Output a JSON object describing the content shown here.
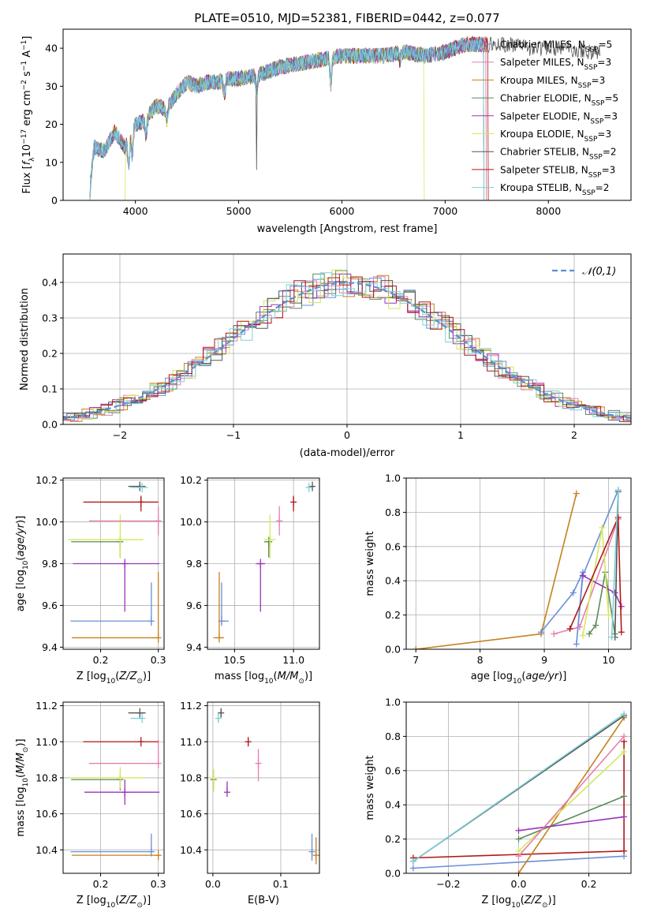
{
  "chart_data": [
    {
      "panel": "spectrum",
      "type": "line",
      "title": "PLATE=0510, MJD=52381, FIBERID=0442, z=0.077",
      "xlabel": "wavelength [Angstrom, rest frame]",
      "ylabel": "Flux [f_λ10^-17 erg cm^-2 s^-1 A^-1]",
      "xlim": [
        3300,
        8800
      ],
      "ylim": [
        0,
        45
      ],
      "xticks": [
        "4000",
        "5000",
        "6000",
        "7000",
        "8000"
      ],
      "yticks": [
        "0",
        "10",
        "20",
        "30",
        "40"
      ],
      "grid": false,
      "legend_position": "top-right",
      "legend": [
        {
          "name": "Chabrier MILES, N_SSP=5",
          "color": "#6a8fd8"
        },
        {
          "name": "Salpeter MILES, N_SSP=3",
          "color": "#e67fb0"
        },
        {
          "name": "Kroupa MILES, N_SSP=3",
          "color": "#c6801e"
        },
        {
          "name": "Chabrier ELODIE, N_SSP=5",
          "color": "#5c8a5c"
        },
        {
          "name": "Salpeter ELODIE, N_SSP=3",
          "color": "#9a35b8"
        },
        {
          "name": "Kroupa ELODIE, N_SSP=3",
          "color": "#d4e85a"
        },
        {
          "name": "Chabrier STELIB, N_SSP=2",
          "color": "#555555"
        },
        {
          "name": "Salpeter STELIB, N_SSP=3",
          "color": "#b01818"
        },
        {
          "name": "Kroupa STELIB, N_SSP=2",
          "color": "#7fd0d8"
        }
      ],
      "spectrum_knots": {
        "x": [
          3550,
          3600,
          3700,
          3800,
          3900,
          4000,
          4100,
          4200,
          4300,
          4400,
          4500,
          4600,
          4700,
          4800,
          4900,
          5000,
          5200,
          5400,
          5600,
          5800,
          6000,
          6200,
          6400,
          6600,
          6800,
          7000,
          7200,
          7400,
          7600,
          7800,
          8000,
          8200,
          8400,
          8500
        ],
        "y": [
          0,
          14,
          13,
          18,
          14,
          20,
          21,
          25,
          24,
          28,
          31,
          30,
          31,
          31,
          32,
          32,
          33,
          35,
          36,
          37,
          38,
          38,
          38,
          39,
          38,
          39,
          41,
          41,
          41,
          40,
          40,
          40,
          39,
          39
        ]
      }
    },
    {
      "panel": "residuals",
      "type": "line",
      "xlabel": "(data-model)/error",
      "ylabel": "Normed distribution",
      "xlim": [
        -2.5,
        2.5
      ],
      "ylim": [
        0,
        0.48
      ],
      "xticks": [
        "−2",
        "−1",
        "0",
        "1",
        "2"
      ],
      "yticks": [
        "0.0",
        "0.1",
        "0.2",
        "0.3",
        "0.4"
      ],
      "grid": true,
      "legend_position": "top-right",
      "reference_curve": {
        "name": "𝒩(0,1)",
        "mean": 0,
        "sigma": 1,
        "color": "#5b8fd6"
      },
      "hist_bin_width": 0.1
    },
    {
      "panel": "age_vs_Z",
      "type": "scatter",
      "xlabel": "Z [log10(Z/Z☉)]",
      "ylabel": "age  [log10(age/yr)]",
      "xlim": [
        0.135,
        0.31
      ],
      "ylim": [
        9.39,
        10.21
      ],
      "xticks": [
        "0.2",
        "0.3"
      ],
      "yticks": [
        "9.4",
        "9.6",
        "9.8",
        "10.0",
        "10.2"
      ],
      "grid": true,
      "points": [
        {
          "name": "Chabrier MILES",
          "x": 0.288,
          "y": 9.525,
          "xerr": [
            0.14,
            0.0
          ],
          "yerr": [
            0.015,
            0.185
          ]
        },
        {
          "name": "Kroupa MILES",
          "x": 0.3,
          "y": 9.445,
          "xerr": [
            0.15,
            0.0
          ],
          "yerr": [
            0.0,
            0.315
          ]
        },
        {
          "name": "Salpeter ELODIE",
          "x": 0.242,
          "y": 9.8,
          "xerr": [
            0.09,
            0.06
          ],
          "yerr": [
            0.23,
            0.0
          ]
        },
        {
          "name": "Chabrier ELODIE",
          "x": 0.234,
          "y": 9.905,
          "xerr": [
            0.085,
            0.0
          ],
          "yerr": [
            0.075,
            0.0
          ]
        },
        {
          "name": "Kroupa ELODIE",
          "x": 0.234,
          "y": 9.915,
          "xerr": [
            0.09,
            0.04
          ],
          "yerr": [
            0.09,
            0.12
          ]
        },
        {
          "name": "Salpeter MILES",
          "x": 0.3,
          "y": 10.005,
          "xerr": [
            0.12,
            0.0
          ],
          "yerr": [
            0.07,
            0.07
          ]
        },
        {
          "name": "Salpeter STELIB",
          "x": 0.27,
          "y": 10.095,
          "xerr": [
            0.1,
            0.03
          ],
          "yerr": [
            0.045,
            0.03
          ]
        },
        {
          "name": "Chabrier STELIB",
          "x": 0.268,
          "y": 10.17,
          "xerr": [
            0.02,
            0.01
          ],
          "yerr": [
            0.0,
            0.0
          ]
        },
        {
          "name": "Kroupa STELIB",
          "x": 0.272,
          "y": 10.165,
          "xerr": [
            0.02,
            0.01
          ],
          "yerr": [
            0.0,
            0.0
          ]
        }
      ]
    },
    {
      "panel": "age_vs_mass",
      "type": "scatter",
      "xlabel": "mass [log10(M/M☉)]",
      "ylabel": "",
      "xlim": [
        10.27,
        11.22
      ],
      "ylim": [
        9.39,
        10.21
      ],
      "xticks": [
        "10.5",
        "11.0"
      ],
      "yticks": [
        "9.4",
        "9.6",
        "9.8",
        "10.0",
        "10.2"
      ],
      "grid": true,
      "points": [
        {
          "name": "Chabrier MILES",
          "x": 10.39,
          "y": 9.525,
          "xerr": [
            0.0,
            0.06
          ],
          "yerr": [
            0.015,
            0.185
          ]
        },
        {
          "name": "Kroupa MILES",
          "x": 10.37,
          "y": 9.445,
          "xerr": [
            0.05,
            0.04
          ],
          "yerr": [
            0.0,
            0.315
          ]
        },
        {
          "name": "Salpeter ELODIE",
          "x": 10.72,
          "y": 9.8,
          "xerr": [
            0.04,
            0.04
          ],
          "yerr": [
            0.23,
            0.0
          ]
        },
        {
          "name": "Chabrier ELODIE",
          "x": 10.79,
          "y": 9.905,
          "xerr": [
            0.04,
            0.03
          ],
          "yerr": [
            0.075,
            0.0
          ]
        },
        {
          "name": "Kroupa ELODIE",
          "x": 10.8,
          "y": 9.915,
          "xerr": [
            0.05,
            0.05
          ],
          "yerr": [
            0.09,
            0.12
          ]
        },
        {
          "name": "Salpeter MILES",
          "x": 10.88,
          "y": 10.005,
          "xerr": [
            0.0,
            0.0
          ],
          "yerr": [
            0.07,
            0.07
          ]
        },
        {
          "name": "Salpeter STELIB",
          "x": 11.0,
          "y": 10.095,
          "xerr": [
            0.0,
            0.0
          ],
          "yerr": [
            0.045,
            0.03
          ]
        },
        {
          "name": "Chabrier STELIB",
          "x": 11.16,
          "y": 10.17,
          "xerr": [
            0.01,
            0.01
          ],
          "yerr": [
            0.0,
            0.0
          ]
        },
        {
          "name": "Kroupa STELIB",
          "x": 11.13,
          "y": 10.165,
          "xerr": [
            0.02,
            0.0
          ],
          "yerr": [
            0.0,
            0.0
          ]
        }
      ]
    },
    {
      "panel": "massweight_vs_age",
      "type": "line",
      "xlabel": "age  [log10(age/yr)]",
      "ylabel": "mass weight",
      "xlim": [
        6.85,
        10.35
      ],
      "ylim": [
        0,
        1
      ],
      "xticks": [
        "7",
        "8",
        "9",
        "10"
      ],
      "yticks": [
        "0.0",
        "0.2",
        "0.4",
        "0.6",
        "0.8",
        "1.0"
      ],
      "grid": true,
      "series": [
        {
          "name": "Kroupa MILES",
          "x": [
            7.0,
            8.95,
            9.5
          ],
          "y": [
            0.0,
            0.09,
            0.91
          ]
        },
        {
          "name": "Chabrier MILES",
          "x": [
            8.95,
            9.45,
            9.6,
            9.5,
            9.6,
            10.15
          ],
          "y": [
            0.1,
            0.33,
            0.45,
            0.03,
            0.43,
            0.93
          ]
        },
        {
          "name": "Salpeter MILES",
          "x": [
            9.15,
            9.55,
            10.15
          ],
          "y": [
            0.09,
            0.13,
            0.76
          ]
        },
        {
          "name": "Chabrier ELODIE",
          "x": [
            9.7,
            9.8,
            9.95,
            10.1
          ],
          "y": [
            0.09,
            0.14,
            0.45,
            0.09
          ]
        },
        {
          "name": "Salpeter ELODIE",
          "x": [
            9.6,
            10.1,
            10.2
          ],
          "y": [
            0.43,
            0.33,
            0.25
          ]
        },
        {
          "name": "Kroupa ELODIE",
          "x": [
            9.6,
            9.9,
            10.0
          ],
          "y": [
            0.08,
            0.71,
            0.2
          ]
        },
        {
          "name": "Chabrier STELIB",
          "x": [
            10.1,
            10.15
          ],
          "y": [
            0.07,
            0.92
          ]
        },
        {
          "name": "Salpeter STELIB",
          "x": [
            9.4,
            10.15,
            10.2
          ],
          "y": [
            0.12,
            0.77,
            0.1
          ]
        },
        {
          "name": "Kroupa STELIB",
          "x": [
            10.05,
            10.15
          ],
          "y": [
            0.07,
            0.93
          ]
        }
      ]
    },
    {
      "panel": "mass_vs_Z",
      "type": "scatter",
      "xlabel": "Z [log10(Z/Z☉)]",
      "ylabel": "mass [log10(M/M☉)]",
      "xlim": [
        0.135,
        0.31
      ],
      "ylim": [
        10.27,
        11.22
      ],
      "xticks": [
        "0.2",
        "0.3"
      ],
      "yticks": [
        "10.4",
        "10.6",
        "10.8",
        "11.0",
        "11.2"
      ],
      "grid": true,
      "points": [
        {
          "name": "Chabrier MILES",
          "x": 0.288,
          "y": 10.39,
          "xerr": [
            0.14,
            0.0
          ],
          "yerr": [
            0.0,
            0.1
          ]
        },
        {
          "name": "Kroupa MILES",
          "x": 0.3,
          "y": 10.37,
          "xerr": [
            0.15,
            0.0
          ],
          "yerr": [
            0.0,
            0.0
          ]
        },
        {
          "name": "Salpeter ELODIE",
          "x": 0.242,
          "y": 10.72,
          "xerr": [
            0.07,
            0.06
          ],
          "yerr": [
            0.07,
            0.07
          ]
        },
        {
          "name": "Chabrier ELODIE",
          "x": 0.234,
          "y": 10.79,
          "xerr": [
            0.085,
            0.0
          ],
          "yerr": [
            0.06,
            0.0
          ]
        },
        {
          "name": "Kroupa ELODIE",
          "x": 0.234,
          "y": 10.8,
          "xerr": [
            0.09,
            0.04
          ],
          "yerr": [
            0.06,
            0.06
          ]
        },
        {
          "name": "Salpeter MILES",
          "x": 0.3,
          "y": 10.88,
          "xerr": [
            0.12,
            0.0
          ],
          "yerr": [
            0.0,
            0.13
          ]
        },
        {
          "name": "Salpeter STELIB",
          "x": 0.27,
          "y": 11.0,
          "xerr": [
            0.1,
            0.03
          ],
          "yerr": [
            0.0,
            0.0
          ]
        },
        {
          "name": "Chabrier STELIB",
          "x": 0.268,
          "y": 11.16,
          "xerr": [
            0.02,
            0.01
          ],
          "yerr": [
            0.0,
            0.0
          ]
        },
        {
          "name": "Kroupa STELIB",
          "x": 0.272,
          "y": 11.13,
          "xerr": [
            0.02,
            0.0
          ],
          "yerr": [
            0.0,
            0.0
          ]
        }
      ]
    },
    {
      "panel": "mass_vs_ebv",
      "type": "scatter",
      "xlabel": "E(B-V)",
      "ylabel": "",
      "xlim": [
        -0.008,
        0.157
      ],
      "ylim": [
        10.27,
        11.22
      ],
      "xticks": [
        "0.0",
        "0.1"
      ],
      "yticks": [
        "10.4",
        "10.6",
        "10.8",
        "11.0",
        "11.2"
      ],
      "grid": true,
      "points": [
        {
          "name": "Chabrier MILES",
          "x": 0.146,
          "y": 10.39,
          "yerr": [
            0.05,
            0.1
          ]
        },
        {
          "name": "Kroupa MILES",
          "x": 0.152,
          "y": 10.37,
          "yerr": [
            0.05,
            0.1
          ]
        },
        {
          "name": "Salpeter ELODIE",
          "x": 0.021,
          "y": 10.72,
          "yerr": [
            0.0,
            0.06
          ]
        },
        {
          "name": "Chabrier ELODIE",
          "x": 0.001,
          "y": 10.79,
          "yerr": [
            0.06,
            0.05
          ]
        },
        {
          "name": "Kroupa ELODIE",
          "x": 0.001,
          "y": 10.8,
          "yerr": [
            0.08,
            0.05
          ]
        },
        {
          "name": "Salpeter MILES",
          "x": 0.067,
          "y": 10.88,
          "yerr": [
            0.1,
            0.08
          ]
        },
        {
          "name": "Salpeter STELIB",
          "x": 0.052,
          "y": 11.0,
          "yerr": [
            0.02,
            0.02
          ]
        },
        {
          "name": "Chabrier STELIB",
          "x": 0.012,
          "y": 11.16,
          "yerr": [
            0.02,
            0.02
          ]
        },
        {
          "name": "Kroupa STELIB",
          "x": 0.008,
          "y": 11.13,
          "yerr": [
            0.02,
            0.02
          ]
        }
      ]
    },
    {
      "panel": "massweight_vs_Z",
      "type": "line",
      "xlabel": "Z [log10(Z/Z☉)]",
      "ylabel": "mass weight",
      "xlim": [
        -0.32,
        0.32
      ],
      "ylim": [
        0,
        1
      ],
      "xticks": [
        "−0.2",
        "0.0",
        "0.2"
      ],
      "yticks": [
        "0.0",
        "0.2",
        "0.4",
        "0.6",
        "0.8",
        "1.0"
      ],
      "grid": true,
      "series": [
        {
          "name": "Chabrier MILES",
          "x": [
            -0.3,
            0.3
          ],
          "y": [
            0.03,
            0.1
          ]
        },
        {
          "name": "Salpeter STELIB",
          "x": [
            -0.3,
            0.3,
            0.3
          ],
          "y": [
            0.09,
            0.13,
            0.77
          ]
        },
        {
          "name": "Kroupa MILES",
          "x": [
            0.0,
            0.3
          ],
          "y": [
            0.0,
            0.91
          ]
        },
        {
          "name": "Kroupa ELODIE",
          "x": [
            0.0,
            0.3
          ],
          "y": [
            0.13,
            0.71
          ]
        },
        {
          "name": "Chabrier ELODIE",
          "x": [
            0.0,
            0.3
          ],
          "y": [
            0.2,
            0.45
          ]
        },
        {
          "name": "Salpeter ELODIE",
          "x": [
            0.0,
            0.3
          ],
          "y": [
            0.25,
            0.33
          ]
        },
        {
          "name": "Salpeter MILES",
          "x": [
            0.0,
            0.3
          ],
          "y": [
            0.1,
            0.8
          ]
        },
        {
          "name": "Chabrier STELIB",
          "x": [
            -0.3,
            0.3
          ],
          "y": [
            0.07,
            0.92
          ]
        },
        {
          "name": "Kroupa STELIB",
          "x": [
            -0.3,
            0.3
          ],
          "y": [
            0.07,
            0.93
          ]
        }
      ]
    }
  ]
}
